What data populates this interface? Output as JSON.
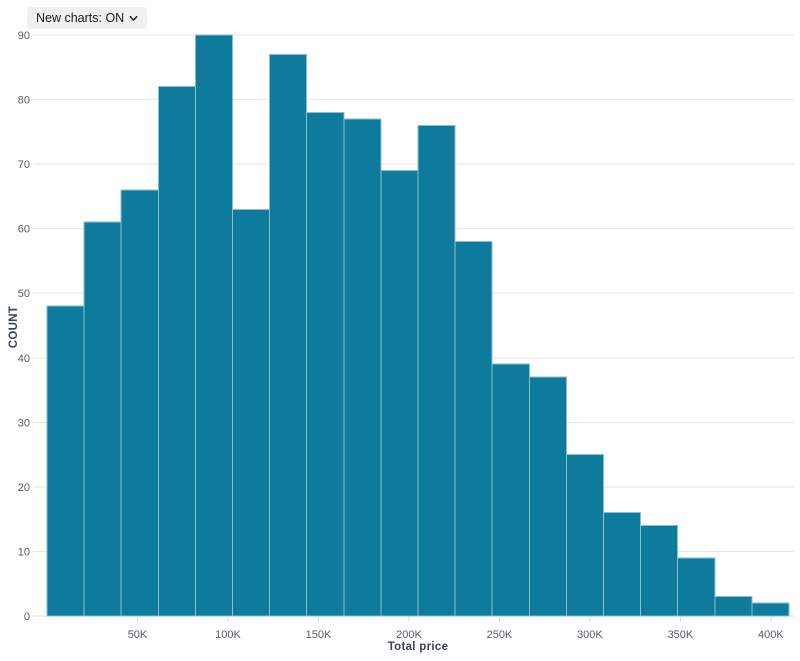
{
  "header": {
    "new_charts_dropdown": {
      "label": "New charts: ON",
      "icon": "chevron-down-icon"
    }
  },
  "chart_data": {
    "type": "bar",
    "subtype": "histogram",
    "title": "",
    "xlabel": "Total price",
    "ylabel": "COUNT",
    "values": [
      48,
      61,
      66,
      82,
      90,
      63,
      87,
      78,
      77,
      69,
      76,
      58,
      39,
      37,
      25,
      16,
      14,
      9,
      3,
      2
    ],
    "x_tick_labels": [
      "50K",
      "100K",
      "150K",
      "200K",
      "250K",
      "300K",
      "350K",
      "400K"
    ],
    "x_tick_values": [
      50,
      100,
      150,
      200,
      250,
      300,
      350,
      400
    ],
    "xlim": [
      0,
      410
    ],
    "y_ticks": [
      0,
      10,
      20,
      30,
      40,
      50,
      60,
      70,
      80,
      90
    ],
    "ylim": [
      0,
      90
    ],
    "grid": true,
    "legend": "none",
    "colors": {
      "bar_fill": "#0e7b9c",
      "bar_stroke": "#8bbfd0",
      "gridline": "#e6e6e6",
      "baseline": "#dcdcdc",
      "tick_mark": "#d9d9d9",
      "tick_label": "#565c65",
      "axis_title": "#3d4551",
      "background": "#ffffff",
      "dropdown_bg": "#f0f0f1",
      "dropdown_text": "#1b1b1b"
    }
  }
}
